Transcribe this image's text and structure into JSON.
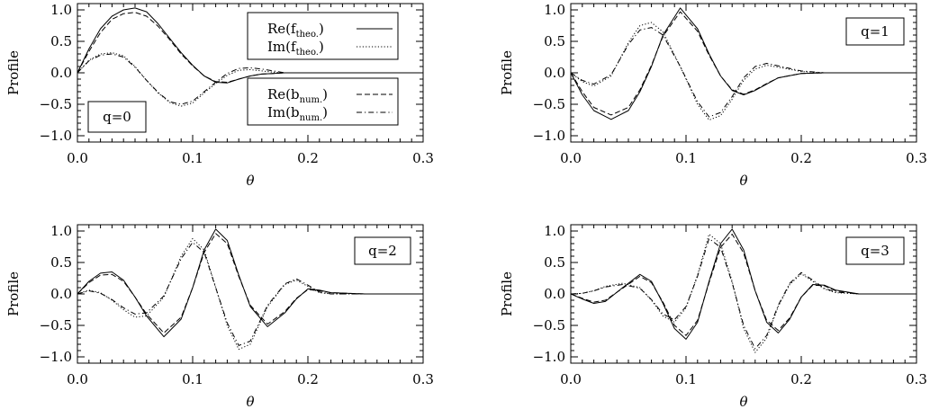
{
  "legend": {
    "entries": [
      {
        "name": "Re",
        "sub": "theo.",
        "style": "solid"
      },
      {
        "name": "Im",
        "sub": "theo.",
        "style": "dotted"
      },
      {
        "name": "Re",
        "sub": "num.",
        "style": "dashed"
      },
      {
        "name": "Im",
        "sub": "num.",
        "style": "dashdot"
      }
    ],
    "fn_theo": "f",
    "fn_num": "b"
  },
  "chart_data": [
    {
      "type": "line",
      "label": "q=0",
      "xlabel": "θ",
      "ylabel": "Profile",
      "xlim": [
        0.0,
        0.3
      ],
      "ylim": [
        -1.1,
        1.1
      ],
      "xticks": [
        "0.0",
        "0.1",
        "0.2",
        "0.3"
      ],
      "yticks": [
        "−1.0",
        "−0.5",
        "0.0",
        "0.5",
        "1.0"
      ],
      "x": [
        0.0,
        0.01,
        0.02,
        0.03,
        0.04,
        0.05,
        0.06,
        0.07,
        0.08,
        0.09,
        0.1,
        0.11,
        0.12,
        0.13,
        0.14,
        0.15,
        0.16,
        0.17,
        0.18,
        0.2,
        0.25,
        0.3
      ],
      "series": [
        {
          "values": [
            0.0,
            0.38,
            0.7,
            0.9,
            1.0,
            1.03,
            0.97,
            0.78,
            0.55,
            0.32,
            0.12,
            -0.05,
            -0.15,
            -0.16,
            -0.1,
            -0.05,
            -0.02,
            -0.01,
            0.0,
            0.0,
            0.0,
            0.0
          ]
        },
        {
          "values": [
            0.0,
            0.2,
            0.3,
            0.32,
            0.27,
            0.1,
            -0.12,
            -0.32,
            -0.47,
            -0.53,
            -0.48,
            -0.32,
            -0.17,
            -0.04,
            0.04,
            0.05,
            0.03,
            0.01,
            0.0,
            0.0,
            0.0,
            0.0
          ]
        },
        {
          "values": [
            0.0,
            0.34,
            0.64,
            0.85,
            0.94,
            0.96,
            0.9,
            0.74,
            0.53,
            0.3,
            0.11,
            -0.05,
            -0.14,
            -0.15,
            -0.1,
            -0.05,
            -0.02,
            -0.01,
            0.0,
            0.0,
            0.0,
            0.0
          ]
        },
        {
          "values": [
            0.0,
            0.19,
            0.28,
            0.3,
            0.25,
            0.09,
            -0.12,
            -0.31,
            -0.46,
            -0.5,
            -0.45,
            -0.3,
            -0.15,
            -0.01,
            0.07,
            0.08,
            0.06,
            0.03,
            0.0,
            0.0,
            0.0,
            0.0
          ]
        }
      ]
    },
    {
      "type": "line",
      "label": "q=1",
      "xlabel": "θ",
      "ylabel": "Profile",
      "xlim": [
        0.0,
        0.3
      ],
      "ylim": [
        -1.1,
        1.1
      ],
      "xticks": [
        "0.0",
        "0.1",
        "0.2",
        "0.3"
      ],
      "yticks": [
        "−1.0",
        "−0.5",
        "0.0",
        "0.5",
        "1.0"
      ],
      "x": [
        0.0,
        0.01,
        0.02,
        0.035,
        0.05,
        0.06,
        0.07,
        0.08,
        0.095,
        0.11,
        0.12,
        0.13,
        0.14,
        0.15,
        0.16,
        0.17,
        0.18,
        0.2,
        0.22,
        0.25,
        0.3
      ],
      "series": [
        {
          "values": [
            0.0,
            -0.35,
            -0.6,
            -0.74,
            -0.6,
            -0.3,
            0.1,
            0.6,
            1.03,
            0.7,
            0.3,
            -0.05,
            -0.28,
            -0.35,
            -0.28,
            -0.18,
            -0.08,
            -0.01,
            0.0,
            0.0,
            0.0
          ]
        },
        {
          "values": [
            0.0,
            -0.14,
            -0.21,
            -0.05,
            0.48,
            0.75,
            0.8,
            0.65,
            0.1,
            -0.5,
            -0.75,
            -0.68,
            -0.42,
            -0.12,
            0.06,
            0.12,
            0.09,
            0.02,
            0.0,
            0.0,
            0.0
          ]
        },
        {
          "values": [
            0.0,
            -0.3,
            -0.55,
            -0.67,
            -0.55,
            -0.27,
            0.12,
            0.58,
            0.97,
            0.66,
            0.28,
            -0.05,
            -0.27,
            -0.34,
            -0.27,
            -0.17,
            -0.08,
            -0.01,
            0.0,
            0.0,
            0.0
          ]
        },
        {
          "values": [
            0.0,
            -0.12,
            -0.18,
            -0.03,
            0.45,
            0.68,
            0.72,
            0.6,
            0.1,
            -0.46,
            -0.7,
            -0.63,
            -0.38,
            -0.08,
            0.1,
            0.15,
            0.11,
            0.03,
            0.0,
            0.0,
            0.0
          ]
        }
      ]
    },
    {
      "type": "line",
      "label": "q=2",
      "xlabel": "θ",
      "ylabel": "Profile",
      "xlim": [
        0.0,
        0.3
      ],
      "ylim": [
        -1.1,
        1.1
      ],
      "xticks": [
        "0.0",
        "0.1",
        "0.2",
        "0.3"
      ],
      "yticks": [
        "−1.0",
        "−0.5",
        "0.0",
        "0.5",
        "1.0"
      ],
      "x": [
        0.0,
        0.01,
        0.02,
        0.03,
        0.04,
        0.05,
        0.06,
        0.075,
        0.09,
        0.1,
        0.11,
        0.12,
        0.13,
        0.14,
        0.15,
        0.165,
        0.18,
        0.19,
        0.2,
        0.21,
        0.22,
        0.25,
        0.3
      ],
      "series": [
        {
          "values": [
            0.0,
            0.2,
            0.33,
            0.35,
            0.22,
            -0.05,
            -0.35,
            -0.68,
            -0.4,
            0.1,
            0.7,
            1.03,
            0.85,
            0.3,
            -0.2,
            -0.52,
            -0.3,
            -0.08,
            0.08,
            0.06,
            0.02,
            0.0,
            0.0
          ]
        },
        {
          "values": [
            0.0,
            0.06,
            0.02,
            -0.1,
            -0.25,
            -0.37,
            -0.35,
            -0.05,
            0.6,
            0.88,
            0.7,
            0.1,
            -0.5,
            -0.88,
            -0.8,
            -0.2,
            0.15,
            0.22,
            0.12,
            0.02,
            0.0,
            0.0,
            0.0
          ]
        },
        {
          "values": [
            0.0,
            0.18,
            0.3,
            0.31,
            0.2,
            -0.05,
            -0.32,
            -0.62,
            -0.37,
            0.1,
            0.66,
            0.96,
            0.8,
            0.28,
            -0.18,
            -0.48,
            -0.28,
            -0.07,
            0.07,
            0.05,
            0.02,
            0.0,
            0.0
          ]
        },
        {
          "values": [
            0.0,
            0.05,
            0.01,
            -0.09,
            -0.22,
            -0.32,
            -0.3,
            -0.03,
            0.56,
            0.82,
            0.66,
            0.1,
            -0.46,
            -0.82,
            -0.75,
            -0.18,
            0.16,
            0.24,
            0.14,
            0.03,
            0.0,
            0.0,
            0.0
          ]
        }
      ]
    },
    {
      "type": "line",
      "label": "q=3",
      "xlabel": "θ",
      "ylabel": "Profile",
      "xlim": [
        0.0,
        0.3
      ],
      "ylim": [
        -1.1,
        1.1
      ],
      "xticks": [
        "0.0",
        "0.1",
        "0.2",
        "0.3"
      ],
      "yticks": [
        "−1.0",
        "−0.5",
        "0.0",
        "0.5",
        "1.0"
      ],
      "x": [
        0.0,
        0.01,
        0.02,
        0.03,
        0.045,
        0.06,
        0.07,
        0.08,
        0.09,
        0.1,
        0.11,
        0.12,
        0.13,
        0.14,
        0.15,
        0.16,
        0.17,
        0.18,
        0.19,
        0.2,
        0.21,
        0.22,
        0.23,
        0.25,
        0.3
      ],
      "series": [
        {
          "values": [
            0.0,
            -0.08,
            -0.15,
            -0.12,
            0.1,
            0.31,
            0.2,
            -0.15,
            -0.55,
            -0.72,
            -0.45,
            0.2,
            0.8,
            1.03,
            0.7,
            0.05,
            -0.45,
            -0.62,
            -0.4,
            -0.05,
            0.15,
            0.14,
            0.06,
            0.0,
            0.0
          ]
        },
        {
          "values": [
            0.0,
            0.01,
            0.05,
            0.12,
            0.17,
            0.1,
            -0.1,
            -0.35,
            -0.45,
            -0.22,
            0.3,
            0.95,
            0.8,
            0.2,
            -0.55,
            -0.93,
            -0.7,
            -0.2,
            0.15,
            0.32,
            0.2,
            0.08,
            0.02,
            0.0,
            0.0
          ]
        },
        {
          "values": [
            0.0,
            -0.07,
            -0.13,
            -0.1,
            0.09,
            0.28,
            0.18,
            -0.13,
            -0.5,
            -0.66,
            -0.42,
            0.18,
            0.74,
            0.95,
            0.65,
            0.05,
            -0.42,
            -0.58,
            -0.38,
            -0.05,
            0.14,
            0.13,
            0.05,
            0.0,
            0.0
          ]
        },
        {
          "values": [
            0.0,
            0.01,
            0.05,
            0.11,
            0.15,
            0.09,
            -0.09,
            -0.32,
            -0.41,
            -0.2,
            0.28,
            0.88,
            0.74,
            0.18,
            -0.5,
            -0.87,
            -0.66,
            -0.18,
            0.17,
            0.34,
            0.22,
            0.09,
            0.03,
            0.0,
            0.0
          ]
        }
      ]
    }
  ]
}
